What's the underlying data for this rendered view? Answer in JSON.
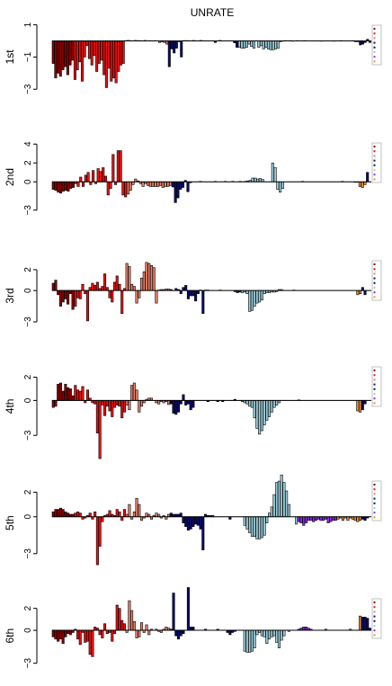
{
  "figure": {
    "title": "UNRATE",
    "panel_colors": {
      "darkred": "#8b0000",
      "red": "#ee1111",
      "salmon": "#e8806a",
      "navy": "#0b0b6e",
      "lightblue": "#9fcfdc",
      "purple": "#8a2be2",
      "orange": "#f28e2b",
      "legendbox": "#cccccc"
    }
  },
  "chart_data": [
    {
      "type": "bar",
      "panel_label": "1st",
      "ylim": [
        -3.6,
        1.2
      ],
      "yticks": [
        1,
        -1,
        -3
      ],
      "legend": [
        "",
        "",
        "",
        "",
        "",
        "",
        "",
        ""
      ],
      "values": [
        -1.4,
        -2.3,
        -2.0,
        -2.2,
        -1.8,
        -1.6,
        -2.1,
        -1.5,
        -1.2,
        -2.4,
        -1.8,
        -1.3,
        -2.5,
        -1.0,
        -0.3,
        -1.1,
        -1.5,
        -0.9,
        -1.9,
        -1.4,
        -1.2,
        -2.1,
        -2.9,
        -1.7,
        -2.5,
        -2.3,
        -2.6,
        -1.9,
        -1.5,
        -1.4,
        0.02,
        0.03,
        0.02,
        0,
        0.03,
        0.02,
        0.02,
        0,
        0.03,
        0,
        0.02,
        0,
        0.02,
        0,
        -0.1,
        -0.05,
        -0.1,
        -0.2,
        -1.6,
        -0.5,
        -0.75,
        -0.45,
        -0.05,
        -1.0,
        0.02,
        0.02,
        0.02,
        0,
        0.03,
        0,
        0,
        0.03,
        0,
        0,
        0,
        0,
        0,
        -0.1,
        0,
        0.03,
        0,
        0,
        0,
        0,
        0,
        -0.12,
        -0.4,
        -0.4,
        -0.45,
        -0.45,
        -0.4,
        -0.2,
        -0.35,
        -0.45,
        0,
        -0.4,
        -0.3,
        -0.5,
        -0.4,
        -0.5,
        -0.55,
        -0.55,
        -0.5,
        -0.45,
        -0.05,
        -0.02,
        0.02,
        0,
        0.02,
        -0.02,
        0,
        0.02,
        0,
        0,
        0.02,
        0,
        0,
        0,
        0,
        0,
        0,
        -0.02,
        0,
        0,
        0,
        0,
        -0.02,
        0,
        0,
        0.02,
        0,
        0,
        0,
        0,
        0.02,
        -0.05,
        -0.05,
        -0.25,
        -0.2,
        -0.1,
        0.1,
        -0.1
      ],
      "groups": [
        [
          0,
          9,
          "darkred"
        ],
        [
          9,
          30,
          "red"
        ],
        [
          30,
          48,
          "salmon"
        ],
        [
          48,
          56,
          "navy"
        ],
        [
          56,
          77,
          "navy"
        ],
        [
          77,
          100,
          "lightblue"
        ],
        [
          100,
          116,
          "salmon"
        ],
        [
          116,
          126,
          "orange"
        ],
        [
          126,
          130,
          "navy"
        ]
      ]
    },
    {
      "type": "bar",
      "panel_label": "2nd",
      "ylim": [
        -3.6,
        4.5
      ],
      "yticks": [
        4,
        2,
        0,
        -3
      ],
      "legend": [
        "",
        "",
        "",
        "",
        "",
        "",
        "",
        ""
      ],
      "values": [
        -0.8,
        -0.9,
        -1.1,
        -1.2,
        -1.0,
        -0.9,
        -1.0,
        -0.7,
        -0.6,
        -0.2,
        -0.5,
        0.5,
        -0.5,
        0.7,
        1.0,
        -0.3,
        1.2,
        -0.2,
        1.4,
        1.1,
        1.5,
        0.6,
        -1.4,
        -0.7,
        2.9,
        -0.3,
        3.3,
        3.3,
        -1.4,
        -1.6,
        -1.3,
        -0.9,
        -0.3,
        0.3,
        0.1,
        -0.2,
        -0.5,
        -0.2,
        -0.4,
        -0.5,
        -0.5,
        -0.5,
        -0.5,
        -0.4,
        -0.6,
        -0.5,
        -0.5,
        -0.4,
        -0.55,
        -2.2,
        -1.7,
        -0.8,
        -0.6,
        0.15,
        -1.05,
        -0.1,
        0,
        0,
        0,
        0.05,
        0,
        0,
        0,
        0,
        0,
        0.05,
        0,
        0,
        0,
        0.05,
        0,
        0,
        0.05,
        0,
        0,
        0.05,
        0,
        0.05,
        0.1,
        0.15,
        0.4,
        0.4,
        0.3,
        0.35,
        0.25,
        0,
        0,
        0,
        2.0,
        1.5,
        -0.8,
        -1.1,
        -0.7,
        0,
        0,
        0,
        0,
        0,
        0,
        0,
        0.05,
        0,
        0,
        0,
        0,
        0,
        0,
        0,
        0,
        0,
        0,
        0,
        0,
        0,
        0,
        0,
        0.05,
        0,
        0,
        0,
        0,
        -0.05,
        -0.05,
        -0.5,
        -0.6,
        -0.3,
        1.0,
        0
      ],
      "groups": [
        [
          0,
          9,
          "darkred"
        ],
        [
          9,
          30,
          "red"
        ],
        [
          30,
          48,
          "salmon"
        ],
        [
          48,
          56,
          "navy"
        ],
        [
          56,
          77,
          "navy"
        ],
        [
          77,
          100,
          "lightblue"
        ],
        [
          100,
          116,
          "salmon"
        ],
        [
          116,
          126,
          "orange"
        ],
        [
          126,
          130,
          "navy"
        ]
      ]
    },
    {
      "type": "bar",
      "panel_label": "3rd",
      "ylim": [
        -3.6,
        3.2
      ],
      "yticks": [
        2,
        0,
        -3
      ],
      "legend": [
        "",
        "",
        "",
        "",
        "",
        "",
        "",
        ""
      ],
      "values": [
        0.7,
        1.0,
        -0.4,
        -1.5,
        -1.1,
        -0.8,
        -1.3,
        -0.3,
        -1.8,
        -1.5,
        -0.7,
        -0.8,
        0.6,
        -0.3,
        -2.9,
        0.3,
        0.7,
        0.5,
        0.8,
        0.2,
        0.4,
        1.6,
        0.3,
        -0.7,
        -1.1,
        0.8,
        1.4,
        0.6,
        -2.2,
        0.2,
        2.6,
        2.3,
        0.6,
        0.4,
        -1.2,
        -0.7,
        1.2,
        1.8,
        2.7,
        2.6,
        2.4,
        2.2,
        -1.2,
        0.05,
        0.1,
        0.1,
        0.15,
        0.15,
        0.1,
        0,
        0.2,
        0.1,
        -0.3,
        0.3,
        0.5,
        -0.8,
        -0.5,
        -0.5,
        -1.0,
        -0.3,
        0.05,
        -2.2,
        0.05,
        0.05,
        0,
        0,
        0,
        0,
        0.05,
        0,
        0,
        0,
        0,
        0,
        -0.1,
        -0.2,
        -0.15,
        -0.2,
        -0.15,
        -0.3,
        -2.0,
        -1.9,
        -1.5,
        -1.2,
        -1.1,
        -0.9,
        -0.3,
        -0.2,
        -0.2,
        -0.15,
        -0.15,
        -0.1,
        0.1,
        0.1,
        0,
        0,
        0,
        0,
        0.05,
        0,
        0,
        0,
        0,
        0,
        0,
        0,
        0,
        0,
        0,
        0,
        0,
        0,
        0,
        0,
        0,
        0,
        0,
        0,
        0,
        0,
        0,
        0,
        0,
        0,
        -0.4,
        -0.3,
        0.3,
        -0.4,
        0,
        0
      ],
      "groups": [
        [
          0,
          9,
          "darkred"
        ],
        [
          9,
          30,
          "red"
        ],
        [
          30,
          48,
          "salmon"
        ],
        [
          48,
          56,
          "navy"
        ],
        [
          56,
          77,
          "navy"
        ],
        [
          77,
          100,
          "lightblue"
        ],
        [
          100,
          116,
          "salmon"
        ],
        [
          116,
          126,
          "orange"
        ],
        [
          126,
          130,
          "navy"
        ]
      ]
    },
    {
      "type": "bar",
      "panel_label": "4th",
      "ylim": [
        -3.6,
        3.2
      ],
      "yticks": [
        2,
        0,
        -3
      ],
      "legend": [
        "",
        "",
        "",
        "",
        "",
        "",
        "",
        ""
      ],
      "values": [
        -0.6,
        -0.5,
        1.4,
        1.5,
        0.8,
        1.4,
        1.1,
        1.0,
        0.4,
        1.3,
        0.9,
        0.8,
        1.2,
        -0.2,
        0.9,
        0.2,
        -0.2,
        -0.3,
        -2.8,
        -5.0,
        -0.4,
        -1.3,
        -0.5,
        -0.9,
        -1.4,
        -0.6,
        -0.4,
        -0.5,
        -1.5,
        -1.0,
        -0.4,
        -0.8,
        1.3,
        1.5,
        0.9,
        -1.0,
        -0.5,
        -0.2,
        0.1,
        0.2,
        0.2,
        0,
        -0.2,
        -0.3,
        -0.1,
        -0.2,
        -0.1,
        -0.35,
        -0.3,
        -1.1,
        -1.2,
        -1.0,
        -0.3,
        0.5,
        -0.4,
        -0.3,
        -0.8,
        -0.6,
        0,
        0,
        0,
        0,
        0,
        -0.1,
        0,
        0,
        0,
        -0.1,
        0,
        -0.1,
        0,
        0,
        0,
        0,
        0.1,
        0,
        0,
        -0.1,
        -0.2,
        -0.3,
        -0.5,
        -0.6,
        -1.5,
        -2.4,
        -2.9,
        -2.6,
        -2.1,
        -1.7,
        -1.4,
        -1.0,
        -0.6,
        -0.4,
        -0.2,
        0,
        0,
        0,
        0,
        0,
        0,
        0,
        0.05,
        0,
        0,
        0,
        0,
        0,
        0,
        0,
        0,
        0,
        0,
        0,
        0,
        0,
        0,
        0,
        0,
        0,
        0,
        0,
        0,
        0,
        0,
        0,
        -0.9,
        -1.0,
        -0.8,
        -0.3,
        0,
        0
      ],
      "groups": [
        [
          0,
          9,
          "darkred"
        ],
        [
          9,
          30,
          "red"
        ],
        [
          30,
          48,
          "salmon"
        ],
        [
          48,
          56,
          "navy"
        ],
        [
          56,
          77,
          "navy"
        ],
        [
          77,
          100,
          "lightblue"
        ],
        [
          100,
          116,
          "salmon"
        ],
        [
          116,
          126,
          "orange"
        ],
        [
          126,
          130,
          "navy"
        ]
      ]
    },
    {
      "type": "bar",
      "panel_label": "5th",
      "ylim": [
        -3.6,
        3.2
      ],
      "yticks": [
        2,
        0,
        -3
      ],
      "legend": [
        "",
        "",
        "",
        "",
        "",
        "",
        "",
        ""
      ],
      "values": [
        0.4,
        0.6,
        0.6,
        0.7,
        0.6,
        0.4,
        0.3,
        0.2,
        0.2,
        0.3,
        0.4,
        0.3,
        -0.2,
        -0.1,
        0.1,
        0.3,
        -0.2,
        0.4,
        -3.9,
        -2.4,
        -0.4,
        0.1,
        0.2,
        0.5,
        0.2,
        0.1,
        0.6,
        0.4,
        -0.3,
        0.6,
        0.2,
        1.0,
        -0.2,
        0.4,
        1.5,
        1.0,
        -0.3,
        -0.1,
        0.3,
        0.2,
        -0.2,
        0.1,
        0.3,
        0.2,
        -0.1,
        0.1,
        -0.2,
        0.2,
        0.3,
        0.2,
        0.2,
        0.2,
        0.3,
        -0.5,
        -0.8,
        -1.1,
        -1.0,
        -0.8,
        -0.6,
        -0.7,
        -1.0,
        -2.7,
        0.2,
        0.1,
        0.1,
        0.1,
        0,
        0,
        0,
        0,
        0,
        0,
        -0.2,
        0,
        0,
        0,
        0,
        0,
        -0.7,
        -1.0,
        -1.3,
        -1.6,
        -1.6,
        -1.8,
        -1.8,
        -1.7,
        -1.5,
        -0.5,
        0.3,
        0.8,
        1.8,
        2.8,
        2.9,
        3.4,
        2.8,
        2.1,
        1.0,
        0,
        0,
        -0.6,
        -0.4,
        -0.5,
        -0.7,
        -0.5,
        -0.3,
        -0.3,
        -0.4,
        -0.3,
        -0.2,
        -0.3,
        -0.3,
        -0.2,
        -0.5,
        -0.4,
        -0.3,
        -0.3,
        -0.2,
        -0.1,
        -0.3,
        -0.1,
        -0.3,
        -0.1,
        -0.2,
        -0.3,
        -0.4,
        -0.3,
        -0.2,
        -0.3,
        -0.1,
        0
      ],
      "groups": [
        [
          0,
          9,
          "darkred"
        ],
        [
          9,
          30,
          "red"
        ],
        [
          30,
          48,
          "salmon"
        ],
        [
          48,
          56,
          "navy"
        ],
        [
          56,
          77,
          "navy"
        ],
        [
          77,
          100,
          "lightblue"
        ],
        [
          100,
          116,
          "purple"
        ],
        [
          116,
          126,
          "orange"
        ],
        [
          126,
          130,
          "navy"
        ]
      ]
    },
    {
      "type": "bar",
      "panel_label": "6th",
      "ylim": [
        -3.6,
        3.2
      ],
      "yticks": [
        2,
        0,
        -3
      ],
      "legend": [
        "",
        "",
        "",
        "",
        "",
        "",
        "",
        ""
      ],
      "values": [
        -0.6,
        -0.8,
        -1.0,
        -0.8,
        -1.2,
        -0.6,
        -0.3,
        -0.4,
        -0.2,
        0.1,
        -0.8,
        -1.3,
        -0.2,
        -1.1,
        -1.0,
        -2.2,
        -2.4,
        0.3,
        0.2,
        -0.4,
        -0.7,
        0.6,
        -0.3,
        -0.2,
        -1.0,
        -0.3,
        2.3,
        2.0,
        0.9,
        0.6,
        -0.2,
        2.7,
        1.8,
        0.8,
        -0.7,
        -0.6,
        0.7,
        -0.2,
        0.5,
        -0.4,
        0.1,
        0,
        0.1,
        -0.1,
        -0.2,
        0.1,
        0.3,
        0.2,
        0.1,
        3.4,
        -0.5,
        -0.8,
        -0.5,
        -0.3,
        0,
        3.9,
        0.3,
        0.3,
        0,
        0,
        0,
        0,
        0.1,
        0,
        0,
        0,
        0,
        0.1,
        0,
        0,
        0,
        -0.2,
        -0.4,
        -0.2,
        -0.1,
        0,
        0,
        0,
        -1.9,
        -2.0,
        -2.0,
        -1.9,
        -1.6,
        -0.4,
        -0.2,
        -0.5,
        -0.6,
        -1.2,
        -0.8,
        -0.6,
        -0.5,
        -1.1,
        -1.6,
        -0.9,
        -0.5,
        0,
        -0.1,
        0,
        0,
        0,
        0.1,
        0.2,
        0.3,
        0.3,
        0.2,
        0.1,
        0,
        0,
        0,
        0,
        0,
        0.1,
        0,
        0,
        0,
        0,
        0,
        0,
        0,
        0,
        0,
        0.1,
        0,
        0,
        0,
        1.3,
        1.2,
        1.2,
        1.1,
        0.2
      ],
      "groups": [
        [
          0,
          9,
          "darkred"
        ],
        [
          9,
          30,
          "red"
        ],
        [
          30,
          48,
          "salmon"
        ],
        [
          48,
          56,
          "navy"
        ],
        [
          56,
          77,
          "navy"
        ],
        [
          77,
          100,
          "lightblue"
        ],
        [
          100,
          116,
          "purple"
        ],
        [
          116,
          126,
          "orange"
        ],
        [
          126,
          130,
          "navy"
        ]
      ]
    }
  ]
}
